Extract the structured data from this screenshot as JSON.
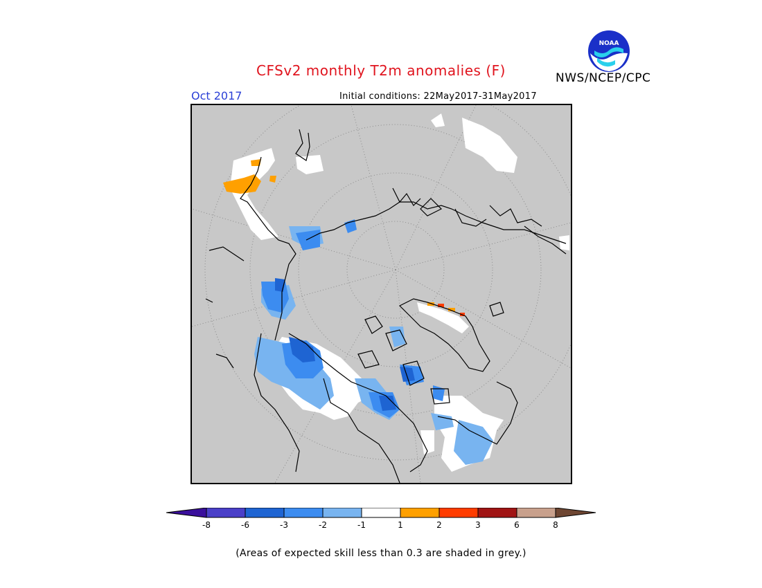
{
  "header": {
    "title": "CFSv2 monthly T2m anomalies (F)",
    "month": "Oct 2017",
    "initial_conditions": "Initial conditions: 22May2017-31May2017",
    "agency": "NWS/NCEP/CPC",
    "logo_text": "NOAA"
  },
  "legend": {
    "colors": [
      "#3a0f9c",
      "#4a3fc8",
      "#1e64d2",
      "#3c8cf0",
      "#78b4f0",
      "#ffffff",
      "#ffa000",
      "#ff3c00",
      "#a01414",
      "#c8a08c",
      "#6e4632"
    ],
    "tick_labels": [
      "-8",
      "-6",
      "-3",
      "-2",
      "-1",
      "1",
      "2",
      "3",
      "6",
      "8"
    ]
  },
  "note": "(Areas of expected skill less than 0.3 are shaded in grey.)"
}
